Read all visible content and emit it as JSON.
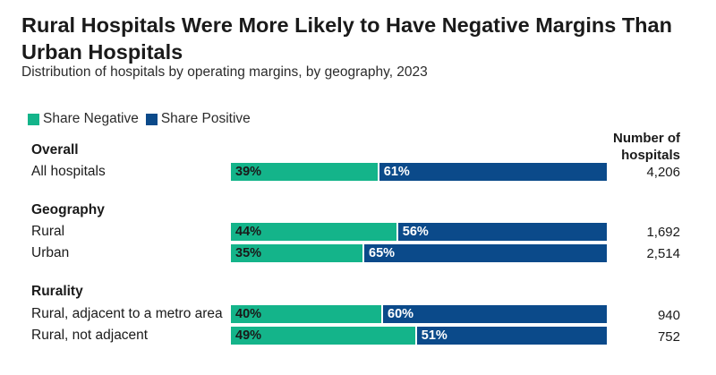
{
  "title": "Rural Hospitals Were More Likely to Have Negative Margins Than Urban Hospitals",
  "subtitle": "Distribution of hospitals by operating margins, by geography, 2023",
  "legend": {
    "negative": "Share Negative",
    "positive": "Share Positive"
  },
  "colors": {
    "negative": "#14b48a",
    "positive": "#0b4a8a"
  },
  "count_header": "Number of hospitals",
  "chart_data": {
    "type": "bar",
    "orientation": "horizontal",
    "stacked": true,
    "title": "Rural Hospitals Were More Likely to Have Negative Margins Than Urban Hospitals",
    "subtitle": "Distribution of hospitals by operating margins, by geography, 2023",
    "series": [
      {
        "name": "Share Negative",
        "values": [
          39,
          44,
          35,
          40,
          49
        ]
      },
      {
        "name": "Share Positive",
        "values": [
          61,
          56,
          65,
          60,
          51
        ]
      }
    ],
    "groups": [
      {
        "name": "Overall",
        "rows": [
          {
            "label": "All hospitals",
            "negative": 39,
            "positive": 61,
            "negative_label": "39%",
            "positive_label": "61%",
            "count": "4,206"
          }
        ]
      },
      {
        "name": "Geography",
        "rows": [
          {
            "label": "Rural",
            "negative": 44,
            "positive": 56,
            "negative_label": "44%",
            "positive_label": "56%",
            "count": "1,692"
          },
          {
            "label": "Urban",
            "negative": 35,
            "positive": 65,
            "negative_label": "35%",
            "positive_label": "65%",
            "count": "2,514"
          }
        ]
      },
      {
        "name": "Rurality",
        "rows": [
          {
            "label": "Rural, adjacent to a metro area",
            "negative": 40,
            "positive": 60,
            "negative_label": "40%",
            "positive_label": "60%",
            "count": "940"
          },
          {
            "label": "Rural, not adjacent",
            "negative": 49,
            "positive": 51,
            "negative_label": "49%",
            "positive_label": "51%",
            "count": "752"
          }
        ]
      }
    ],
    "xlim": [
      0,
      100
    ],
    "unit": "%"
  }
}
